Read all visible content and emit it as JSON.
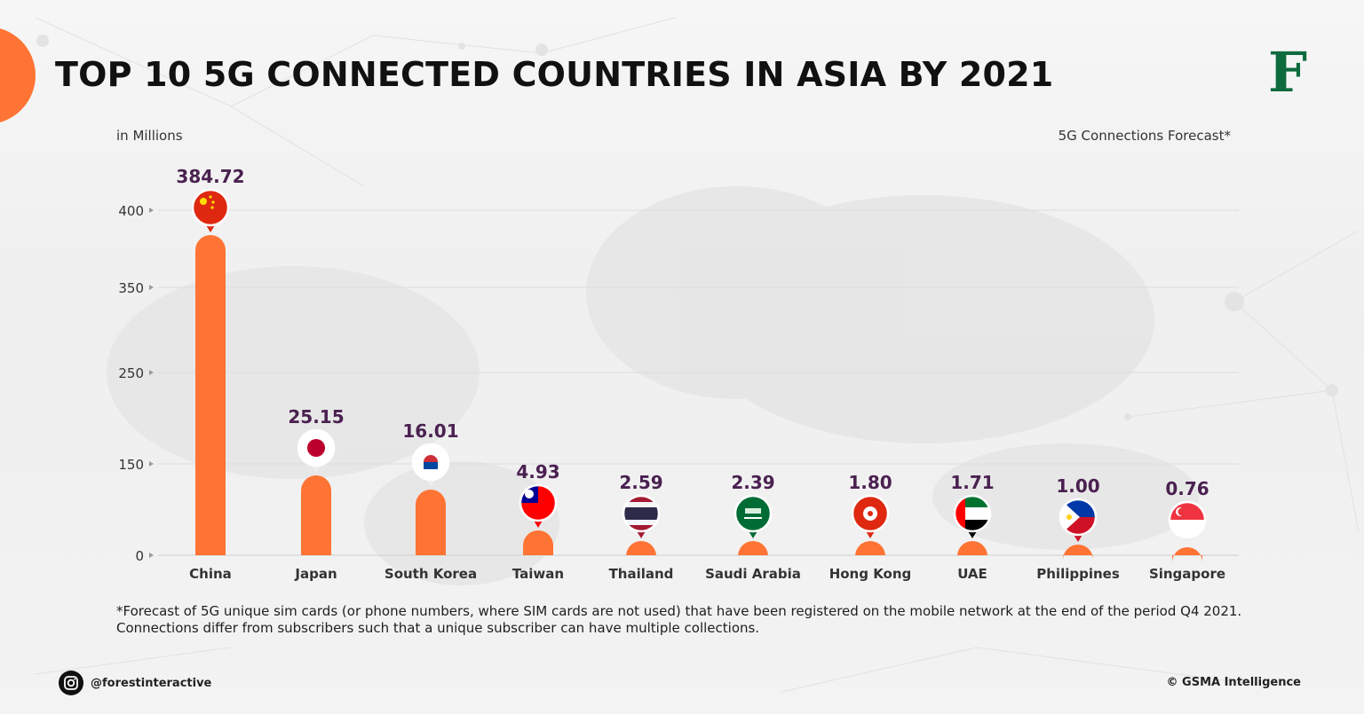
{
  "header": {
    "title": "TOP 10 5G CONNECTED COUNTRIES IN ASIA BY 2021",
    "logo_letter": "F"
  },
  "chart_labels": {
    "unit": "in Millions",
    "note": "5G Connections Forecast*"
  },
  "footnote": {
    "line1": "*Forecast of 5G unique sim cards (or phone numbers, where SIM cards are not used) that have been registered on the mobile network at the end of the period Q4 2021.",
    "line2": "Connections differ from subscribers such that a unique subscriber can have multiple collections."
  },
  "footer": {
    "social_handle": "@forestinteractive",
    "credit": "© GSMA Intelligence"
  },
  "colors": {
    "bar": "#ff7434",
    "value_label": "#4a2150",
    "title": "#111111",
    "logo": "#0d6b3e"
  },
  "chart_data": {
    "type": "bar",
    "categories": [
      "China",
      "Japan",
      "South Korea",
      "Taiwan",
      "Thailand",
      "Saudi Arabia",
      "Hong Kong",
      "UAE",
      "Philippines",
      "Singapore"
    ],
    "values": [
      384.72,
      25.15,
      16.01,
      4.93,
      2.59,
      2.39,
      1.8,
      1.71,
      1.0,
      0.76
    ],
    "value_labels": [
      "384.72",
      "25.15",
      "16.01",
      "4.93",
      "2.59",
      "2.39",
      "1.80",
      "1.71",
      "1.00",
      "0.76"
    ],
    "yticks": [
      {
        "value": 0,
        "label": "0"
      },
      {
        "value": 150,
        "label": "150"
      },
      {
        "value": 250,
        "label": "250"
      },
      {
        "value": 350,
        "label": "350"
      },
      {
        "value": 400,
        "label": "400"
      }
    ],
    "ylim": [
      0,
      400
    ],
    "ylabel": "in Millions",
    "grid": true,
    "flag_icons": [
      "china-flag-icon",
      "japan-flag-icon",
      "south-korea-flag-icon",
      "taiwan-flag-icon",
      "thailand-flag-icon",
      "saudi-arabia-flag-icon",
      "hong-kong-flag-icon",
      "uae-flag-icon",
      "philippines-flag-icon",
      "singapore-flag-icon"
    ]
  }
}
